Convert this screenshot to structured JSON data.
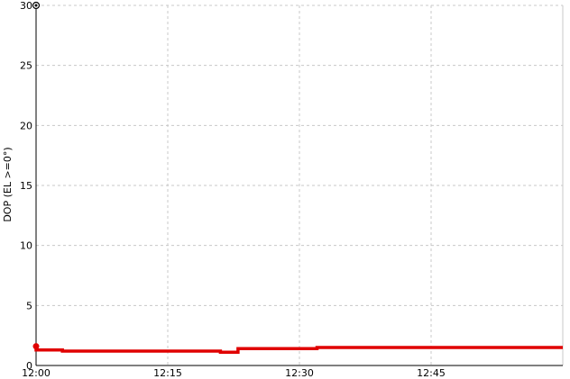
{
  "chart_data": {
    "type": "line",
    "title": "",
    "xlabel": "",
    "ylabel": "DOP (EL >=0°)",
    "x_unit": "time",
    "xlim": [
      "12:00",
      "13:00"
    ],
    "ylim": [
      0,
      30
    ],
    "y_ticks": [
      0,
      5,
      10,
      15,
      20,
      25,
      30
    ],
    "x_ticks": [
      "12:00",
      "12:15",
      "12:30",
      "12:45"
    ],
    "grid": true,
    "legend": "none",
    "series": [
      {
        "color": "#e00000",
        "style": "step",
        "points": [
          {
            "x": "12:00",
            "y": 1.6
          },
          {
            "x": "12:00",
            "y": 1.3
          },
          {
            "x": "12:03",
            "y": 1.3
          },
          {
            "x": "12:03",
            "y": 1.2
          },
          {
            "x": "12:21",
            "y": 1.2
          },
          {
            "x": "12:21",
            "y": 1.1
          },
          {
            "x": "12:23",
            "y": 1.1
          },
          {
            "x": "12:23",
            "y": 1.4
          },
          {
            "x": "12:32",
            "y": 1.4
          },
          {
            "x": "12:32",
            "y": 1.5
          },
          {
            "x": "13:00",
            "y": 1.5
          }
        ]
      }
    ]
  }
}
